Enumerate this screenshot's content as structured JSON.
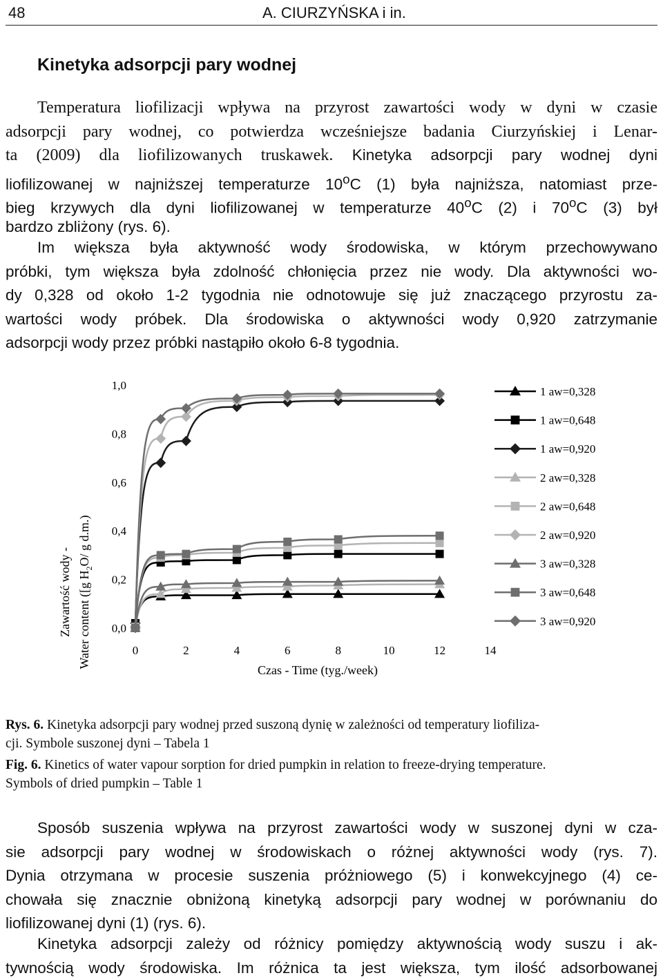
{
  "header": {
    "page_number": "48",
    "running_title": "A. CIURZYŃSKA i in."
  },
  "section": {
    "heading": "Kinetyka adsorpcji pary wodnej"
  },
  "para1": {
    "l1": "Temperatura liofilizacji wpływa na przyrost zawartości wody w dyni w czasie",
    "l2": "adsorpcji pary wodnej, co potwierdza wcześniejsze badania Ciurzyńskiej i Lenar-",
    "l3a": "ta (2009) dla liofilizowanych truskawek.",
    "l3b": " Kinetyka adsorpcji pary wodnej dyni",
    "l4a": "liofilizowanej w najniższej temperaturze 10",
    "l4b": "C (1) była najniższa, natomiast prze-",
    "l5a": "bieg krzywych dla dyni liofilizowanej w temperaturze 40",
    "l5b": "C (2) i 70",
    "l5c": "C (3) był",
    "l6": "bardzo zbliżony (rys. 6).",
    "deg": "o"
  },
  "para2": {
    "l1": "Im większa była aktywność wody środowiska, w którym przechowywano",
    "l2": "próbki, tym większa była zdolność chłonięcia przez nie wody. Dla aktywności wo-",
    "l3": "dy 0,328 od około 1-2 tygodnia nie odnotowuje się już znaczącego przyrostu za-",
    "l4": "wartości wody próbek. Dla środowiska o aktywności wody 0,920 zatrzymanie",
    "l5": "adsorpcji wody przez próbki nastąpiło około 6-8 tygodnia."
  },
  "chart_data": {
    "type": "line",
    "xlabel": "Czas - Time (tyg./week)",
    "ylabel_line1": "Zawartość wody -",
    "ylabel_line2_pre": "Water content ([g H",
    "ylabel_line2_sub": "2",
    "ylabel_line2_post": "O/ g d.m.)",
    "xlim": [
      0,
      14
    ],
    "ylim": [
      0,
      1
    ],
    "x_ticks": [
      "0",
      "2",
      "4",
      "6",
      "8",
      "10",
      "12",
      "14"
    ],
    "y_ticks": [
      "0,0",
      "0,2",
      "0,4",
      "0,6",
      "0,8",
      "1,0"
    ],
    "legend_position": "right",
    "x": [
      0,
      1,
      2,
      4,
      6,
      8,
      12
    ],
    "series": [
      {
        "name": "1 aw=0,328",
        "marker": "triangle",
        "color": "#000000",
        "values": [
          0.02,
          0.13,
          0.135,
          0.135,
          0.14,
          0.14,
          0.14
        ]
      },
      {
        "name": "1 aw=0,648",
        "marker": "square",
        "color": "#000000",
        "values": [
          0.02,
          0.27,
          0.275,
          0.28,
          0.3,
          0.305,
          0.305
        ]
      },
      {
        "name": "1 aw=0,920",
        "marker": "diamond",
        "color": "#1c1c1c",
        "values": [
          0.02,
          0.68,
          0.77,
          0.91,
          0.93,
          0.935,
          0.935
        ]
      },
      {
        "name": "2 aw=0,328",
        "marker": "triangle",
        "color": "#b3b3b3",
        "values": [
          0.005,
          0.14,
          0.16,
          0.165,
          0.17,
          0.175,
          0.18
        ]
      },
      {
        "name": "2 aw=0,648",
        "marker": "square",
        "color": "#b3b3b3",
        "values": [
          0.005,
          0.29,
          0.3,
          0.31,
          0.33,
          0.34,
          0.35
        ]
      },
      {
        "name": "2 aw=0,920",
        "marker": "diamond",
        "color": "#b3b3b3",
        "values": [
          0.005,
          0.78,
          0.87,
          0.935,
          0.95,
          0.955,
          0.96
        ]
      },
      {
        "name": "3 aw=0,328",
        "marker": "triangle",
        "color": "#6e6e6e",
        "values": [
          0.0,
          0.17,
          0.18,
          0.185,
          0.19,
          0.19,
          0.195
        ]
      },
      {
        "name": "3 aw=0,648",
        "marker": "square",
        "color": "#6e6e6e",
        "values": [
          0.0,
          0.3,
          0.305,
          0.325,
          0.355,
          0.365,
          0.38
        ]
      },
      {
        "name": "3 aw=0,920",
        "marker": "diamond",
        "color": "#6e6e6e",
        "values": [
          0.0,
          0.86,
          0.905,
          0.945,
          0.96,
          0.965,
          0.965
        ]
      }
    ]
  },
  "captions": {
    "pl_label": "Rys. 6.",
    "pl_l1": " Kinetyka adsorpcji pary wodnej przed suszoną dynię w zależności od temperatury liofiliza-",
    "pl_l2": "cji. Symbole suszonej dyni – Tabela 1",
    "en_label": "Fig. 6.",
    "en_l1": " Kinetics of water vapour sorption for dried pumpkin in relation to freeze-drying temperature.",
    "en_l2": "Symbols of dried pumpkin – Table 1"
  },
  "para3": {
    "l1": "Sposób suszenia wpływa na przyrost zawartości wody w suszonej dyni w cza-",
    "l2": "sie adsorpcji pary wodnej w środowiskach o różnej aktywności wody (rys. 7).",
    "l3": "Dynia otrzymana w procesie suszenia próżniowego (5) i konwekcyjnego (4) ce-",
    "l4": "chowała się znacznie obniżoną kinetyką adsorpcji pary wodnej w porównaniu do",
    "l5": "liofilizowanej dyni (1) (rys. 6)."
  },
  "para4": {
    "l1": "Kinetyka adsorpcji zależy od różnicy pomiędzy aktywnością wody suszu i ak-",
    "l2": "tywnością wody środowiska. Im różnica ta jest większa, tym ilość adsorbowanej"
  }
}
